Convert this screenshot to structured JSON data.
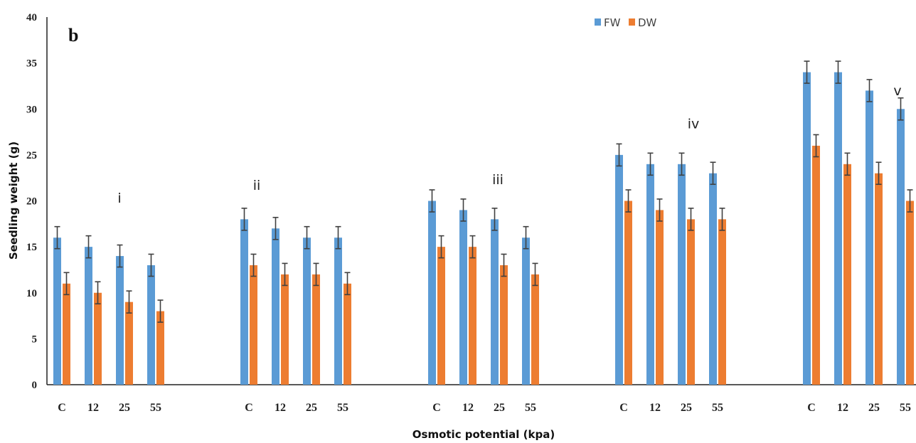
{
  "chart_data": {
    "type": "bar",
    "panel_label": "b",
    "xlabel": "Osmotic potential (kpa)",
    "ylabel": "Seedling weight (g)",
    "ylim": [
      0,
      40
    ],
    "yticks": [
      0,
      5,
      10,
      15,
      20,
      25,
      30,
      35,
      40
    ],
    "grid": false,
    "legend_position": "top-right",
    "colors": {
      "FW": "#5B9BD5",
      "DW": "#ED7D31",
      "error": "#404040"
    },
    "groups": [
      {
        "label": "i",
        "categories": [
          "C",
          "12",
          "25",
          "55"
        ],
        "FW": [
          16,
          15,
          14,
          13
        ],
        "DW": [
          11,
          10,
          9,
          8
        ]
      },
      {
        "label": "ii",
        "categories": [
          "C",
          "12",
          "25",
          "55"
        ],
        "FW": [
          18,
          17,
          16,
          16
        ],
        "DW": [
          13,
          12,
          12,
          11
        ]
      },
      {
        "label": "iii",
        "categories": [
          "C",
          "12",
          "25",
          "55"
        ],
        "FW": [
          20,
          19,
          18,
          16
        ],
        "DW": [
          15,
          15,
          13,
          12
        ]
      },
      {
        "label": "iv",
        "categories": [
          "C",
          "12",
          "25",
          "55"
        ],
        "FW": [
          25,
          24,
          24,
          23
        ],
        "DW": [
          20,
          19,
          18,
          18
        ]
      },
      {
        "label": "v",
        "categories": [
          "C",
          "12",
          "25",
          "55"
        ],
        "FW": [
          34,
          34,
          32,
          30
        ],
        "DW": [
          26,
          24,
          23,
          20
        ]
      }
    ],
    "series": [
      {
        "name": "FW"
      },
      {
        "name": "DW"
      }
    ],
    "error_bar": 1.2
  }
}
